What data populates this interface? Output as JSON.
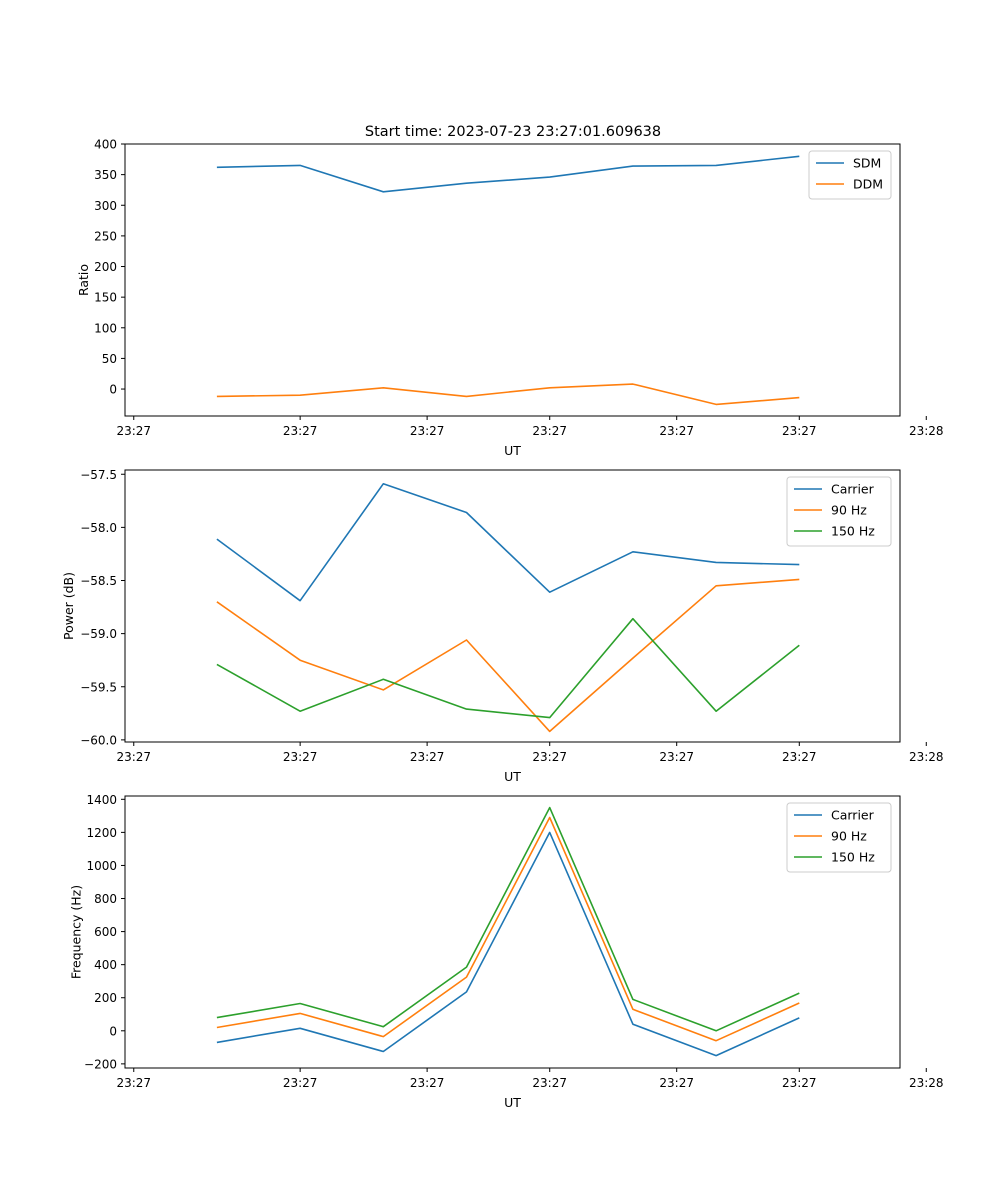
{
  "figure_title": "Start time: 2023-07-23 23:27:01.609638",
  "colors": {
    "blue": "#1f77b4",
    "orange": "#ff7f0e",
    "green": "#2ca02c"
  },
  "chart_data": [
    {
      "type": "line",
      "xlabel": "UT",
      "ylabel": "Ratio",
      "x": [
        0.95,
        1.9,
        2.85,
        3.8,
        4.75,
        5.7,
        6.65,
        7.6
      ],
      "xlim": [
        -0.1,
        8.75
      ],
      "xticks": [
        0,
        1.9,
        3.35,
        4.75,
        6.2,
        7.6,
        9.05
      ],
      "xtick_labels": [
        "23:27",
        "23:27",
        "23:27",
        "23:27",
        "23:27",
        "23:27",
        "23:28"
      ],
      "ylim": [
        -44,
        400
      ],
      "yticks": [
        0,
        50,
        100,
        150,
        200,
        250,
        300,
        350,
        400
      ],
      "ytick_labels": [
        "0",
        "50",
        "100",
        "150",
        "200",
        "250",
        "300",
        "350",
        "400"
      ],
      "legend_position": "top-right",
      "series": [
        {
          "name": "SDM",
          "color": "#1f77b4",
          "values": [
            362,
            365,
            322,
            336,
            346,
            364,
            365,
            380
          ]
        },
        {
          "name": "DDM",
          "color": "#ff7f0e",
          "values": [
            -12,
            -10,
            2,
            -12,
            2,
            8,
            -25,
            -14
          ]
        }
      ]
    },
    {
      "type": "line",
      "xlabel": "UT",
      "ylabel": "Power (dB)",
      "x": [
        0.95,
        1.9,
        2.85,
        3.8,
        4.75,
        5.7,
        6.65,
        7.6
      ],
      "xlim": [
        -0.1,
        8.75
      ],
      "xticks": [
        0,
        1.9,
        3.35,
        4.75,
        6.2,
        7.6,
        9.05
      ],
      "xtick_labels": [
        "23:27",
        "23:27",
        "23:27",
        "23:27",
        "23:27",
        "23:27",
        "23:28"
      ],
      "ylim": [
        -60.02,
        -57.46
      ],
      "yticks": [
        -60.0,
        -59.5,
        -59.0,
        -58.5,
        -58.0,
        -57.5
      ],
      "ytick_labels": [
        "−60.0",
        "−59.5",
        "−59.0",
        "−58.5",
        "−58.0",
        "−57.5"
      ],
      "legend_position": "top-right",
      "series": [
        {
          "name": "Carrier",
          "color": "#1f77b4",
          "values": [
            -58.11,
            -58.69,
            -57.59,
            -57.86,
            -58.61,
            -58.23,
            -58.33,
            -58.35
          ]
        },
        {
          "name": "90 Hz",
          "color": "#ff7f0e",
          "values": [
            -58.7,
            -59.25,
            -59.53,
            -59.06,
            -59.92,
            -59.23,
            -58.55,
            -58.49
          ]
        },
        {
          "name": "150 Hz",
          "color": "#2ca02c",
          "values": [
            -59.29,
            -59.73,
            -59.43,
            -59.71,
            -59.79,
            -58.86,
            -59.73,
            -59.11
          ]
        }
      ]
    },
    {
      "type": "line",
      "xlabel": "UT",
      "ylabel": "Frequency (Hz)",
      "x": [
        0.95,
        1.9,
        2.85,
        3.8,
        4.75,
        5.7,
        6.65,
        7.6
      ],
      "xlim": [
        -0.1,
        8.75
      ],
      "xticks": [
        0,
        1.9,
        3.35,
        4.75,
        6.2,
        7.6,
        9.05
      ],
      "xtick_labels": [
        "23:27",
        "23:27",
        "23:27",
        "23:27",
        "23:27",
        "23:27",
        "23:28"
      ],
      "ylim": [
        -225,
        1420
      ],
      "yticks": [
        -200,
        0,
        200,
        400,
        600,
        800,
        1000,
        1200,
        1400
      ],
      "ytick_labels": [
        "−200",
        "0",
        "200",
        "400",
        "600",
        "800",
        "1000",
        "1200",
        "1400"
      ],
      "legend_position": "top-right",
      "series": [
        {
          "name": "Carrier",
          "color": "#1f77b4",
          "values": [
            -70,
            15,
            -125,
            235,
            1200,
            40,
            -150,
            78
          ]
        },
        {
          "name": "90 Hz",
          "color": "#ff7f0e",
          "values": [
            20,
            105,
            -35,
            325,
            1290,
            130,
            -60,
            168
          ]
        },
        {
          "name": "150 Hz",
          "color": "#2ca02c",
          "values": [
            80,
            165,
            25,
            385,
            1350,
            190,
            0,
            228
          ]
        }
      ]
    }
  ]
}
